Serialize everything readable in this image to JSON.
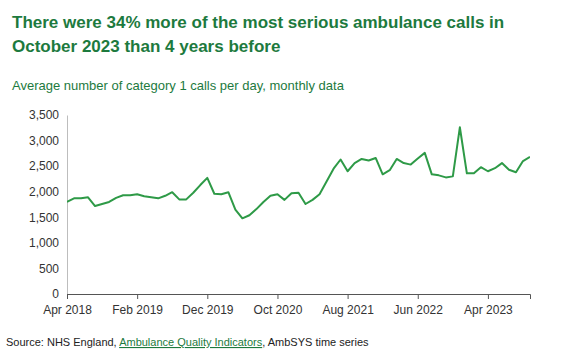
{
  "chart_data": {
    "type": "line",
    "title": "There were 34% more of the most serious ambulance calls in October 2023 than 4 years before",
    "subtitle": "Average number of category 1 calls per day, monthly data",
    "source": [
      "Source: NHS England, ",
      "Ambulance Quality Indicators",
      ", AmbSYS time series"
    ],
    "color": "#2e9a47",
    "categories": [
      "Apr 2018",
      null,
      null,
      null,
      null,
      null,
      null,
      null,
      null,
      null,
      "Feb 2019",
      null,
      null,
      null,
      null,
      null,
      null,
      null,
      null,
      null,
      "Dec 2019",
      null,
      null,
      null,
      null,
      null,
      null,
      null,
      null,
      null,
      "Oct 2020",
      null,
      null,
      null,
      null,
      null,
      null,
      null,
      null,
      null,
      "Aug 2021",
      null,
      null,
      null,
      null,
      null,
      null,
      null,
      null,
      null,
      "Jun 2022",
      null,
      null,
      null,
      null,
      null,
      null,
      null,
      null,
      null,
      "Apr 2023",
      null,
      null,
      null,
      null,
      null,
      null
    ],
    "values": [
      1800,
      1870,
      1870,
      1890,
      1720,
      1760,
      1800,
      1880,
      1930,
      1930,
      1950,
      1910,
      1890,
      1870,
      1920,
      1990,
      1850,
      1850,
      1980,
      2130,
      2270,
      1960,
      1950,
      1990,
      1650,
      1480,
      1540,
      1660,
      1800,
      1920,
      1950,
      1840,
      1970,
      1980,
      1760,
      1840,
      1950,
      2200,
      2450,
      2630,
      2400,
      2560,
      2640,
      2610,
      2660,
      2340,
      2420,
      2640,
      2560,
      2530,
      2650,
      2760,
      2340,
      2320,
      2280,
      2300,
      3260,
      2360,
      2360,
      2480,
      2400,
      2460,
      2560,
      2430,
      2380,
      2600,
      2680
    ],
    "ylim": [
      0,
      3500
    ],
    "yticks": [
      0,
      500,
      {
        "value": 1000,
        "label": "1,000"
      },
      {
        "value": 1500,
        "label": "1,500"
      },
      {
        "value": 2000,
        "label": "2,000"
      },
      {
        "value": 2500,
        "label": "2,500"
      },
      {
        "value": 3000,
        "label": "3,000"
      },
      {
        "value": 3500,
        "label": "3,500"
      }
    ],
    "grid": false
  }
}
